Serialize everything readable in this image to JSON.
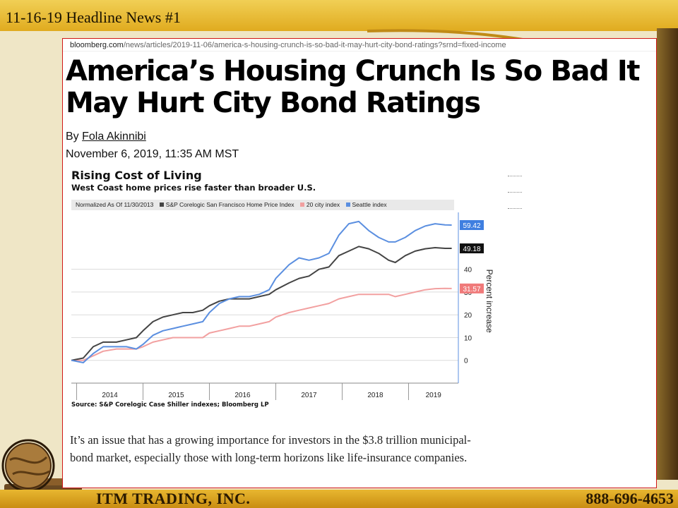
{
  "slide": {
    "title": "11-16-19 Headline News #1",
    "company": "ITM TRADING, INC.",
    "phone": "888-696-4653"
  },
  "browser": {
    "url_host": "bloomberg.com",
    "url_path": "/news/articles/2019-11-06/america-s-housing-crunch-is-so-bad-it-may-hurt-city-bond-ratings?srnd=fixed-income"
  },
  "article": {
    "headline": "America’s Housing Crunch Is So Bad It May Hurt City Bond Ratings",
    "byline_prefix": "By",
    "author": "Fola Akinnibi",
    "date": "November 6, 2019, 11:35 AM MST",
    "body": "It’s an issue that has a growing importance for investors in the $3.8 trillion municipal-bond market, especially those with long-term horizons like life-insurance companies."
  },
  "colors": {
    "accent_red": "#d01818",
    "sf_series": "#444444",
    "city20_series": "#f2a0a0",
    "seattle_series": "#5b8fe0"
  },
  "chart_data": {
    "type": "line",
    "title": "Rising Cost of Living",
    "subtitle": "West Coast home prices rise faster than broader U.S.",
    "legend_note": "Normalized As Of 11/30/2013",
    "ylabel": "Percent increase",
    "source": "Source: S&P Corelogic Case Shiller indexes; Bloomberg LP",
    "x_ticks": [
      "2014",
      "2015",
      "2016",
      "2017",
      "2018",
      "2019"
    ],
    "y_ticks": [
      0,
      10,
      20,
      30,
      40
    ],
    "ylim": [
      -10,
      65
    ],
    "xlim": [
      2013.92,
      2019.75
    ],
    "grid": true,
    "legend": "top",
    "series": [
      {
        "name": "S&P Corelogic San Francisco Home Price Index",
        "color": "#444444",
        "end_label": "49.18",
        "points": [
          [
            2013.92,
            0
          ],
          [
            2014.1,
            1
          ],
          [
            2014.25,
            6
          ],
          [
            2014.4,
            8
          ],
          [
            2014.6,
            8
          ],
          [
            2014.75,
            9
          ],
          [
            2014.9,
            10
          ],
          [
            2015.0,
            13
          ],
          [
            2015.15,
            17
          ],
          [
            2015.3,
            19
          ],
          [
            2015.45,
            20
          ],
          [
            2015.6,
            21
          ],
          [
            2015.75,
            21
          ],
          [
            2015.9,
            22
          ],
          [
            2016.0,
            24
          ],
          [
            2016.15,
            26
          ],
          [
            2016.3,
            27
          ],
          [
            2016.45,
            27
          ],
          [
            2016.6,
            27
          ],
          [
            2016.75,
            28
          ],
          [
            2016.9,
            29
          ],
          [
            2017.0,
            31
          ],
          [
            2017.2,
            34
          ],
          [
            2017.35,
            36
          ],
          [
            2017.5,
            37
          ],
          [
            2017.65,
            40
          ],
          [
            2017.8,
            41
          ],
          [
            2017.95,
            46
          ],
          [
            2018.1,
            48
          ],
          [
            2018.25,
            50
          ],
          [
            2018.4,
            49
          ],
          [
            2018.55,
            47
          ],
          [
            2018.7,
            44
          ],
          [
            2018.8,
            43
          ],
          [
            2018.95,
            46
          ],
          [
            2019.1,
            48
          ],
          [
            2019.25,
            49
          ],
          [
            2019.4,
            49.5
          ],
          [
            2019.55,
            49.2
          ],
          [
            2019.65,
            49.18
          ]
        ]
      },
      {
        "name": "20 city index",
        "color": "#f2a0a0",
        "end_label": "31.57",
        "points": [
          [
            2013.92,
            0
          ],
          [
            2014.1,
            0
          ],
          [
            2014.25,
            2
          ],
          [
            2014.4,
            4
          ],
          [
            2014.6,
            5
          ],
          [
            2014.75,
            5
          ],
          [
            2014.9,
            5
          ],
          [
            2015.0,
            6
          ],
          [
            2015.15,
            8
          ],
          [
            2015.3,
            9
          ],
          [
            2015.45,
            10
          ],
          [
            2015.6,
            10
          ],
          [
            2015.75,
            10
          ],
          [
            2015.9,
            10
          ],
          [
            2016.0,
            12
          ],
          [
            2016.15,
            13
          ],
          [
            2016.3,
            14
          ],
          [
            2016.45,
            15
          ],
          [
            2016.6,
            15
          ],
          [
            2016.75,
            16
          ],
          [
            2016.9,
            17
          ],
          [
            2017.0,
            19
          ],
          [
            2017.2,
            21
          ],
          [
            2017.35,
            22
          ],
          [
            2017.5,
            23
          ],
          [
            2017.65,
            24
          ],
          [
            2017.8,
            25
          ],
          [
            2017.95,
            27
          ],
          [
            2018.1,
            28
          ],
          [
            2018.25,
            29
          ],
          [
            2018.4,
            29
          ],
          [
            2018.55,
            29
          ],
          [
            2018.7,
            29
          ],
          [
            2018.8,
            28
          ],
          [
            2018.95,
            29
          ],
          [
            2019.1,
            30
          ],
          [
            2019.25,
            31
          ],
          [
            2019.4,
            31.5
          ],
          [
            2019.55,
            31.6
          ],
          [
            2019.65,
            31.57
          ]
        ]
      },
      {
        "name": "Seattle index",
        "color": "#5b8fe0",
        "end_label": "59.42",
        "points": [
          [
            2013.92,
            0
          ],
          [
            2014.1,
            -1
          ],
          [
            2014.25,
            3
          ],
          [
            2014.4,
            6
          ],
          [
            2014.6,
            6
          ],
          [
            2014.75,
            6
          ],
          [
            2014.9,
            5
          ],
          [
            2015.0,
            7
          ],
          [
            2015.15,
            11
          ],
          [
            2015.3,
            13
          ],
          [
            2015.45,
            14
          ],
          [
            2015.6,
            15
          ],
          [
            2015.75,
            16
          ],
          [
            2015.9,
            17
          ],
          [
            2016.0,
            21
          ],
          [
            2016.15,
            25
          ],
          [
            2016.3,
            27
          ],
          [
            2016.45,
            28
          ],
          [
            2016.6,
            28
          ],
          [
            2016.75,
            29
          ],
          [
            2016.9,
            31
          ],
          [
            2017.0,
            36
          ],
          [
            2017.2,
            42
          ],
          [
            2017.35,
            45
          ],
          [
            2017.5,
            44
          ],
          [
            2017.65,
            45
          ],
          [
            2017.8,
            47
          ],
          [
            2017.95,
            55
          ],
          [
            2018.1,
            60
          ],
          [
            2018.25,
            61
          ],
          [
            2018.4,
            57
          ],
          [
            2018.55,
            54
          ],
          [
            2018.7,
            52
          ],
          [
            2018.8,
            52
          ],
          [
            2018.95,
            54
          ],
          [
            2019.1,
            57
          ],
          [
            2019.25,
            59
          ],
          [
            2019.4,
            60
          ],
          [
            2019.55,
            59.5
          ],
          [
            2019.65,
            59.42
          ]
        ]
      }
    ]
  }
}
